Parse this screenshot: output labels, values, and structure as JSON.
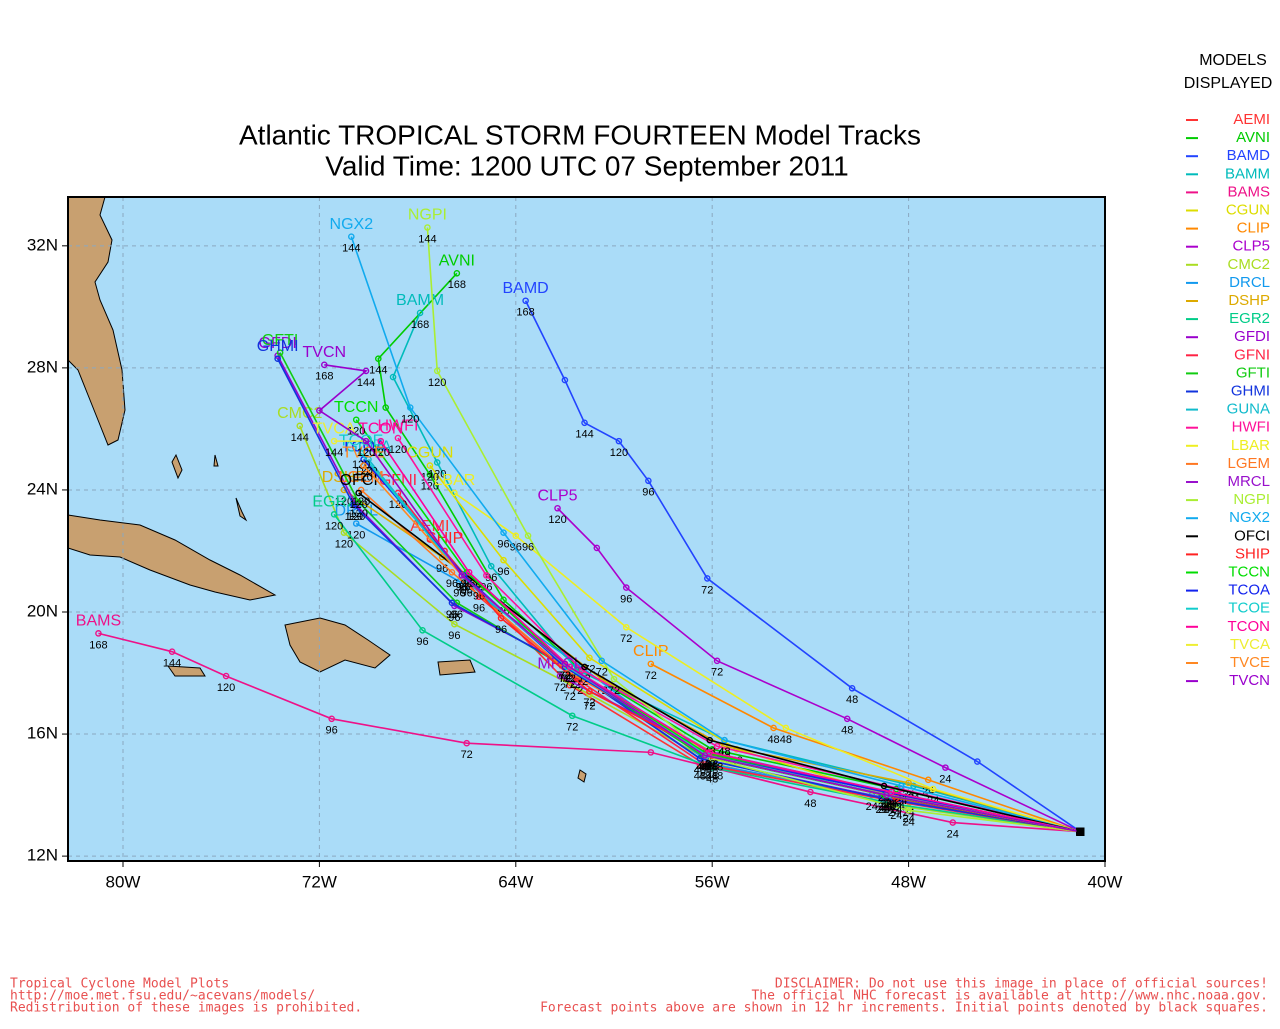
{
  "chart_data": {
    "type": "line",
    "title": "Atlantic TROPICAL STORM FOURTEEN Model Tracks",
    "subtitle": "Valid Time: 1200 UTC 07 September 2011",
    "legend_title": [
      "MODELS",
      "DISPLAYED"
    ],
    "footer_left": [
      "Tropical Cyclone Model Plots",
      "http://moe.met.fsu.edu/~acevans/models/",
      "Redistribution of these images is prohibited."
    ],
    "footer_right": [
      "DISCLAIMER: Do not use this image in place of official sources!",
      "The official NHC forecast is available at http://www.nhc.noaa.gov.",
      "Forecast points above are shown in 12 hr increments. Initial points denoted by black squares."
    ],
    "xlim": [
      -82.24,
      -40
    ],
    "ylim": [
      11.84,
      33.6
    ],
    "grid": true,
    "xticks": [
      {
        "value": -80,
        "label": "80W"
      },
      {
        "value": -72,
        "label": "72W"
      },
      {
        "value": -64,
        "label": "64W"
      },
      {
        "value": -56,
        "label": "56W"
      },
      {
        "value": -48,
        "label": "48W"
      },
      {
        "value": -40,
        "label": "40W"
      }
    ],
    "yticks": [
      {
        "value": 12,
        "label": "12N"
      },
      {
        "value": 16,
        "label": "16N"
      },
      {
        "value": 20,
        "label": "20N"
      },
      {
        "value": 24,
        "label": "24N"
      },
      {
        "value": 28,
        "label": "28N"
      },
      {
        "value": 32,
        "label": "32N"
      }
    ],
    "series": [
      {
        "name": "AEMI",
        "color": "#ff3333",
        "x": [
          -41,
          -48.8,
          -56.5,
          -61.8,
          -66,
          -67.5
        ],
        "values": [
          12.8,
          13.9,
          15.0,
          17.6,
          21.1,
          22.4
        ],
        "hours": [
          null,
          24,
          48,
          72,
          96,
          null
        ]
      },
      {
        "name": "AVNI",
        "color": "#00cc00",
        "x": [
          -41,
          -48.5,
          -56,
          -61.5,
          -64.5,
          -67.5,
          -69.3,
          -69.6,
          -66.4
        ],
        "values": [
          12.8,
          14.2,
          15.5,
          18.2,
          20.4,
          24.5,
          26.7,
          28.3,
          31.1
        ],
        "hours": [
          null,
          24,
          48,
          72,
          96,
          120,
          null,
          144,
          168
        ]
      },
      {
        "name": "BAMD",
        "color": "#2244ff",
        "x": [
          -41,
          -45.2,
          -50.3,
          -56.2,
          -58.6,
          -59.8,
          -61.2,
          -62,
          -63.6
        ],
        "values": [
          12.8,
          15.1,
          17.5,
          21.1,
          24.3,
          25.6,
          26.2,
          27.6,
          30.2
        ],
        "hours": [
          null,
          null,
          48,
          72,
          96,
          120,
          144,
          null,
          168
        ]
      },
      {
        "name": "BAMM",
        "color": "#00bbbb",
        "x": [
          -41,
          -47.8,
          -55.5,
          -61.5,
          -65,
          -67.2,
          -69,
          -67.9
        ],
        "values": [
          12.8,
          14.3,
          15.8,
          18.1,
          21.5,
          24.9,
          27.7,
          29.8
        ],
        "hours": [
          null,
          24,
          48,
          72,
          96,
          120,
          null,
          168
        ]
      },
      {
        "name": "BAMS",
        "color": "#ee1188",
        "x": [
          -41,
          -46.2,
          -52,
          -58.5,
          -66,
          -71.5,
          -75.8,
          -78,
          -81
        ],
        "values": [
          12.8,
          13.1,
          14.1,
          15.4,
          15.7,
          16.5,
          17.9,
          18.7,
          19.3
        ],
        "hours": [
          null,
          24,
          48,
          null,
          72,
          96,
          120,
          144,
          168
        ]
      },
      {
        "name": "CGUN",
        "color": "#dddd00",
        "x": [
          -41,
          -48,
          -55,
          -61,
          -64.5,
          -67.5
        ],
        "values": [
          12.8,
          13.8,
          15.5,
          18.5,
          21.7,
          24.8
        ],
        "hours": [
          null,
          24,
          48,
          72,
          96,
          120
        ]
      },
      {
        "name": "CLIP",
        "color": "#ff8800",
        "x": [
          -41,
          -47.2,
          -53.5,
          -58.5
        ],
        "values": [
          12.8,
          14.5,
          16.2,
          18.3
        ],
        "hours": [
          null,
          24,
          48,
          72
        ]
      },
      {
        "name": "CLP5",
        "color": "#aa00cc",
        "x": [
          -41,
          -46.5,
          -50.5,
          -55.8,
          -59.5,
          -60.7,
          -62.3
        ],
        "values": [
          12.8,
          14.9,
          16.5,
          18.4,
          20.8,
          22.1,
          23.4
        ],
        "hours": [
          null,
          24,
          48,
          72,
          96,
          null,
          120
        ]
      },
      {
        "name": "CMC2",
        "color": "#aadd22",
        "x": [
          -41,
          -48,
          -55.8,
          -61,
          -66.5,
          -71,
          -72.8
        ],
        "values": [
          12.8,
          13.6,
          15.0,
          17.3,
          19.6,
          22.6,
          26.1
        ],
        "hours": [
          null,
          24,
          48,
          72,
          96,
          120,
          144
        ]
      },
      {
        "name": "DRCL",
        "color": "#1199ee",
        "x": [
          -41,
          -49.5,
          -56,
          -61.5,
          -66.3,
          -70.5
        ],
        "values": [
          12.8,
          14,
          15,
          18.3,
          21,
          22.9
        ],
        "hours": [
          null,
          24,
          48,
          72,
          96,
          120
        ]
      },
      {
        "name": "DSHP",
        "color": "#ddaa00",
        "x": [
          -41,
          -48,
          -55.5,
          -60.5,
          -67,
          -71
        ],
        "values": [
          12.8,
          14.4,
          15.6,
          17.8,
          21.8,
          24
        ],
        "hours": [
          null,
          24,
          48,
          72,
          96,
          120
        ]
      },
      {
        "name": "EGR2",
        "color": "#00cc88",
        "x": [
          -41,
          -48.5,
          -56,
          -61.7,
          -67.8,
          -71.4
        ],
        "values": [
          12.8,
          13.7,
          14.9,
          16.6,
          19.4,
          23.2
        ],
        "hours": [
          null,
          24,
          48,
          72,
          96,
          120
        ]
      },
      {
        "name": "GFDI",
        "color": "#9900cc",
        "x": [
          -41,
          -49,
          -56.5,
          -62,
          -66.5,
          -70.5,
          -73.7
        ],
        "values": [
          12.8,
          13.9,
          15.2,
          18.3,
          20.2,
          23.5,
          28.4
        ],
        "hours": [
          null,
          24,
          48,
          72,
          96,
          120,
          null
        ]
      },
      {
        "name": "GFNI",
        "color": "#ff2244",
        "x": [
          -41,
          -48.6,
          -56.3,
          -61.5,
          -65.5,
          -68.8
        ],
        "values": [
          12.8,
          13.8,
          15.0,
          17.8,
          20.5,
          23.9
        ],
        "hours": [
          null,
          24,
          48,
          72,
          96,
          120
        ]
      },
      {
        "name": "GFTI",
        "color": "#11cc11",
        "x": [
          -41,
          -49,
          -56.4,
          -62,
          -66.4,
          -70.4,
          -73.6
        ],
        "values": [
          12.8,
          14.0,
          15.3,
          18.2,
          20.3,
          23.6,
          28.5
        ],
        "hours": [
          null,
          24,
          48,
          72,
          96,
          120,
          null
        ]
      },
      {
        "name": "GHMI",
        "color": "#1133dd",
        "x": [
          -41,
          -49.1,
          -56.5,
          -62.1,
          -66.6,
          -70.6,
          -73.7
        ],
        "values": [
          12.8,
          13.9,
          15.2,
          18.3,
          20.3,
          23.5,
          28.3
        ],
        "hours": [
          null,
          24,
          48,
          72,
          96,
          120,
          null
        ]
      },
      {
        "name": "GUNA",
        "color": "#11bbcc",
        "x": [
          -41,
          -48.8,
          -56,
          -61.6,
          -66,
          -70
        ],
        "values": [
          12.8,
          14.1,
          15.4,
          18,
          21,
          25.0
        ],
        "hours": [
          null,
          24,
          48,
          72,
          96,
          120
        ]
      },
      {
        "name": "HWFI",
        "color": "#ff1199",
        "x": [
          -41,
          -48.3,
          -55.8,
          -61.3,
          -65.2,
          -68.8
        ],
        "values": [
          12.8,
          14.2,
          15.6,
          18.1,
          21.2,
          25.7
        ],
        "hours": [
          null,
          24,
          48,
          72,
          96,
          120
        ]
      },
      {
        "name": "LBAR",
        "color": "#eeee22",
        "x": [
          -41,
          -47,
          -53,
          -59.5,
          -64,
          -66.5
        ],
        "values": [
          12.8,
          14.2,
          16.2,
          19.5,
          22.5,
          23.9
        ],
        "hours": [
          null,
          24,
          48,
          72,
          96,
          null
        ]
      },
      {
        "name": "LGEM",
        "color": "#ff7722",
        "x": [
          -41,
          -48.5,
          -56,
          -61.8,
          -66.6,
          -70.3
        ],
        "values": [
          12.8,
          14.0,
          15.4,
          18,
          21.3,
          24.0
        ],
        "hours": [
          null,
          24,
          48,
          72,
          96,
          120
        ]
      },
      {
        "name": "MRCL",
        "color": "#9911cc",
        "x": [
          -41,
          -48.4,
          -55.8,
          -62.2
        ],
        "values": [
          12.8,
          14.0,
          15.3,
          17.9
        ],
        "hours": [
          null,
          24,
          48,
          72
        ]
      },
      {
        "name": "NGPI",
        "color": "#aaee33",
        "x": [
          -41,
          -48,
          -56,
          -60,
          -63.5,
          -67.2,
          -67.6
        ],
        "values": [
          12.8,
          13.5,
          15.2,
          17.8,
          22.5,
          27.9,
          32.6
        ],
        "hours": [
          null,
          24,
          48,
          72,
          96,
          120,
          144
        ]
      },
      {
        "name": "NGX2",
        "color": "#11aaee",
        "x": [
          -41,
          -48.3,
          -55.5,
          -60.5,
          -64.5,
          -68.3,
          -70.7
        ],
        "values": [
          12.8,
          14.3,
          15.8,
          18.4,
          22.6,
          26.7,
          32.3
        ],
        "hours": [
          null,
          24,
          48,
          72,
          96,
          120,
          144
        ]
      },
      {
        "name": "OFCI",
        "color": "#000000",
        "x": [
          -41,
          -49,
          -56.1,
          -61.2,
          -65.5,
          -70.4
        ],
        "values": [
          12.8,
          14.3,
          15.8,
          18.2,
          20.9,
          23.9
        ],
        "hours": [
          null,
          24,
          48,
          72,
          96,
          120
        ]
      },
      {
        "name": "SHIP",
        "color": "#ff2222",
        "x": [
          -41,
          -48.5,
          -56,
          -61,
          -64.6,
          -66.9
        ],
        "values": [
          12.8,
          13.9,
          15.3,
          17.4,
          19.8,
          22.0
        ],
        "hours": [
          null,
          24,
          48,
          72,
          96,
          null
        ]
      },
      {
        "name": "TCCN",
        "color": "#00dd00",
        "x": [
          -41,
          -49,
          -56.3,
          -62,
          -66,
          -70.5
        ],
        "values": [
          12.8,
          14,
          15.4,
          18.3,
          21.3,
          26.3
        ],
        "hours": [
          null,
          24,
          48,
          72,
          96,
          120
        ]
      },
      {
        "name": "TCOA",
        "color": "#1122ee",
        "x": [
          -41,
          -48.9,
          -56.2,
          -62,
          -66.1,
          -70.2
        ],
        "values": [
          12.8,
          14.1,
          15.3,
          18.2,
          21.2,
          25.0
        ],
        "hours": [
          null,
          24,
          48,
          72,
          96,
          120
        ]
      },
      {
        "name": "TCOE",
        "color": "#11cccc",
        "x": [
          -41,
          -48.8,
          -56.2,
          -61.9,
          -66.2,
          -70.3
        ],
        "values": [
          12.8,
          14.0,
          15.3,
          18.2,
          21.2,
          25.2
        ],
        "hours": [
          null,
          24,
          48,
          72,
          96,
          120
        ]
      },
      {
        "name": "TCON",
        "color": "#ff0099",
        "x": [
          -41,
          -48.7,
          -56.1,
          -61.8,
          -65.9,
          -69.5
        ],
        "values": [
          12.8,
          14.1,
          15.4,
          18.2,
          21.3,
          25.6
        ],
        "hours": [
          null,
          24,
          48,
          72,
          96,
          120
        ]
      },
      {
        "name": "TVCA",
        "color": "#eeee33",
        "x": [
          -41,
          -48.9,
          -56.3,
          -62,
          -66.2,
          -70.1,
          -71.4
        ],
        "values": [
          12.8,
          14.0,
          15.3,
          18.3,
          21.2,
          25.6,
          25.6
        ],
        "hours": [
          null,
          24,
          48,
          72,
          96,
          120,
          144
        ]
      },
      {
        "name": "TVCE",
        "color": "#ff8822",
        "x": [
          -41,
          -48.9,
          -56.3,
          -62,
          -66.2,
          -70.2
        ],
        "values": [
          12.8,
          14.0,
          15.3,
          18.3,
          21.2,
          24.8
        ],
        "hours": [
          null,
          24,
          48,
          72,
          96,
          120
        ]
      },
      {
        "name": "TVCN",
        "color": "#9900cc",
        "x": [
          -41,
          -48.9,
          -56.3,
          -62,
          -66.2,
          -70.1,
          -72,
          -70.1,
          -71.8
        ],
        "values": [
          12.8,
          14.0,
          15.3,
          18.3,
          21.2,
          25.6,
          26.6,
          27.9,
          28.1
        ],
        "hours": [
          null,
          24,
          48,
          72,
          96,
          120,
          null,
          144,
          168
        ]
      }
    ]
  }
}
